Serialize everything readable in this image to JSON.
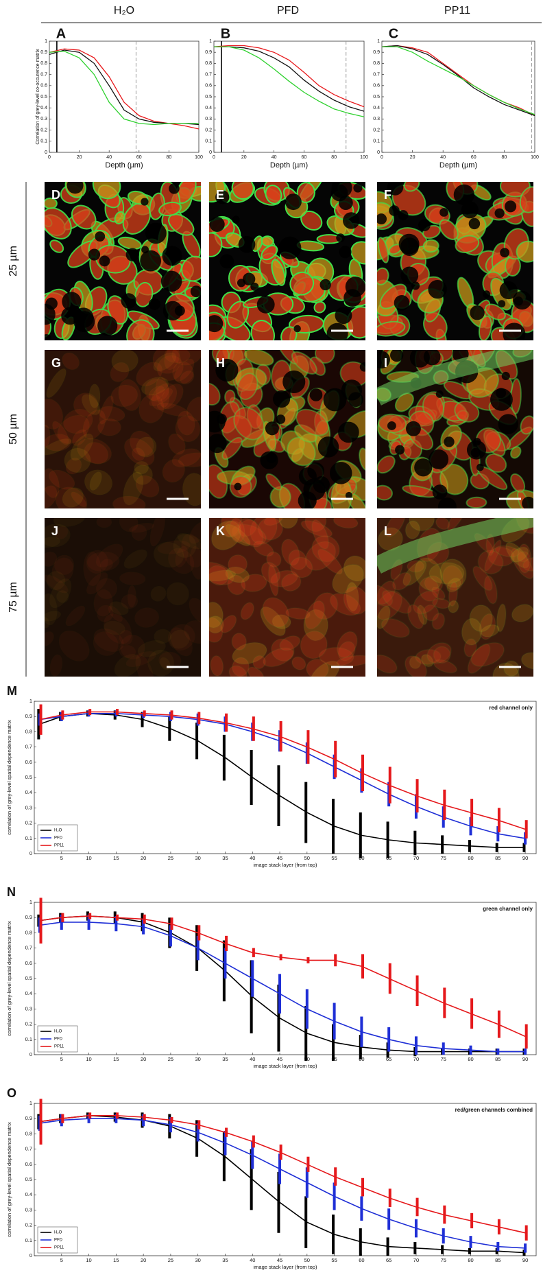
{
  "columns": [
    "H₂O",
    "PFD",
    "PP11"
  ],
  "micrographs": {
    "rows": [
      "25 µm",
      "50 µm",
      "75 µm"
    ],
    "panels": [
      "D",
      "E",
      "F",
      "G",
      "H",
      "I",
      "J",
      "K",
      "L"
    ]
  },
  "chart_data": [
    {
      "type": "line",
      "label": "A",
      "ylabel": "Correlation of grey-level co-occurence matrix",
      "xlabel": "Depth (µm)",
      "x": [
        0,
        10,
        20,
        30,
        40,
        50,
        60,
        70,
        80,
        90,
        100
      ],
      "xlim": [
        0,
        100
      ],
      "xticks": [
        0,
        20,
        40,
        60,
        80,
        100
      ],
      "ylim": [
        0,
        1
      ],
      "yticks": [
        0,
        0.1,
        0.2,
        0.3,
        0.4,
        0.5,
        0.6,
        0.7,
        0.8,
        0.9,
        1
      ],
      "series": [
        {
          "color": "#e8191c",
          "values": [
            0.9,
            0.93,
            0.92,
            0.85,
            0.68,
            0.45,
            0.33,
            0.28,
            0.26,
            0.24,
            0.21
          ]
        },
        {
          "color": "#111111",
          "values": [
            0.88,
            0.92,
            0.9,
            0.8,
            0.6,
            0.38,
            0.3,
            0.27,
            0.26,
            0.26,
            0.25
          ]
        },
        {
          "color": "#2fd12f",
          "values": [
            0.9,
            0.91,
            0.85,
            0.7,
            0.45,
            0.3,
            0.26,
            0.25,
            0.26,
            0.26,
            0.26
          ]
        }
      ],
      "vlines": [
        {
          "x": 5,
          "style": "solid"
        },
        {
          "x": 58,
          "style": "dashed"
        }
      ]
    },
    {
      "type": "line",
      "label": "B",
      "xlabel": "Depth (µm)",
      "x": [
        0,
        10,
        20,
        30,
        40,
        50,
        60,
        70,
        80,
        90,
        100
      ],
      "xlim": [
        0,
        100
      ],
      "xticks": [
        0,
        20,
        40,
        60,
        80,
        100
      ],
      "ylim": [
        0,
        1
      ],
      "yticks": [
        0,
        0.1,
        0.2,
        0.3,
        0.4,
        0.5,
        0.6,
        0.7,
        0.8,
        0.9,
        1
      ],
      "series": [
        {
          "color": "#e8191c",
          "values": [
            0.95,
            0.96,
            0.96,
            0.94,
            0.9,
            0.83,
            0.72,
            0.6,
            0.52,
            0.46,
            0.41
          ]
        },
        {
          "color": "#111111",
          "values": [
            0.95,
            0.95,
            0.94,
            0.91,
            0.85,
            0.77,
            0.65,
            0.55,
            0.47,
            0.41,
            0.37
          ]
        },
        {
          "color": "#2fd12f",
          "values": [
            0.95,
            0.95,
            0.92,
            0.85,
            0.75,
            0.64,
            0.54,
            0.46,
            0.39,
            0.35,
            0.32
          ]
        }
      ],
      "vlines": [
        {
          "x": 5,
          "style": "solid"
        },
        {
          "x": 88,
          "style": "dashed"
        }
      ]
    },
    {
      "type": "line",
      "label": "C",
      "xlabel": "Depth (µm)",
      "x": [
        0,
        10,
        20,
        30,
        40,
        50,
        60,
        70,
        80,
        90,
        100
      ],
      "xlim": [
        0,
        100
      ],
      "xticks": [
        0,
        20,
        40,
        60,
        80,
        100
      ],
      "ylim": [
        0,
        1
      ],
      "yticks": [
        0,
        0.1,
        0.2,
        0.3,
        0.4,
        0.5,
        0.6,
        0.7,
        0.8,
        0.9,
        1
      ],
      "series": [
        {
          "color": "#e8191c",
          "values": [
            0.95,
            0.96,
            0.94,
            0.9,
            0.8,
            0.7,
            0.6,
            0.52,
            0.45,
            0.4,
            0.33
          ]
        },
        {
          "color": "#111111",
          "values": [
            0.95,
            0.96,
            0.93,
            0.88,
            0.79,
            0.69,
            0.58,
            0.5,
            0.43,
            0.38,
            0.33
          ]
        },
        {
          "color": "#2fd12f",
          "values": [
            0.95,
            0.95,
            0.9,
            0.82,
            0.75,
            0.68,
            0.6,
            0.52,
            0.45,
            0.39,
            0.34
          ]
        }
      ],
      "vlines": [
        {
          "x": 98,
          "style": "dashed"
        }
      ]
    },
    {
      "type": "errorline",
      "label": "M",
      "annotation": "red channel only",
      "ylabel": "correlation of grey-level spatial dependence matrix",
      "xlabel": "image stack layer (from top)",
      "x": [
        1,
        5,
        10,
        15,
        20,
        25,
        30,
        35,
        40,
        45,
        50,
        55,
        60,
        65,
        70,
        75,
        80,
        85,
        90
      ],
      "xlim": [
        0,
        92
      ],
      "xticks": [
        5,
        10,
        15,
        20,
        25,
        30,
        35,
        40,
        45,
        50,
        55,
        60,
        65,
        70,
        75,
        80,
        85,
        90
      ],
      "ylim": [
        0,
        1
      ],
      "yticks": [
        0,
        0.1,
        0.2,
        0.3,
        0.4,
        0.5,
        0.6,
        0.7,
        0.8,
        0.9,
        1
      ],
      "legend": "lower left",
      "series": [
        {
          "name": "H₂O",
          "color": "#000000",
          "values": [
            0.85,
            0.9,
            0.92,
            0.91,
            0.88,
            0.82,
            0.74,
            0.63,
            0.5,
            0.38,
            0.27,
            0.18,
            0.12,
            0.09,
            0.07,
            0.06,
            0.05,
            0.04,
            0.04
          ],
          "errors": [
            0.1,
            0.03,
            0.02,
            0.03,
            0.05,
            0.08,
            0.12,
            0.15,
            0.18,
            0.2,
            0.2,
            0.18,
            0.15,
            0.12,
            0.08,
            0.06,
            0.04,
            0.03,
            0.03
          ]
        },
        {
          "name": "PFD",
          "color": "#1f2fd6",
          "values": [
            0.88,
            0.9,
            0.92,
            0.92,
            0.91,
            0.9,
            0.88,
            0.85,
            0.8,
            0.74,
            0.66,
            0.57,
            0.48,
            0.39,
            0.31,
            0.24,
            0.18,
            0.13,
            0.1
          ],
          "errors": [
            0.04,
            0.03,
            0.02,
            0.02,
            0.02,
            0.03,
            0.04,
            0.05,
            0.06,
            0.07,
            0.07,
            0.08,
            0.08,
            0.08,
            0.08,
            0.07,
            0.06,
            0.05,
            0.04
          ]
        },
        {
          "name": "PP11",
          "color": "#e5191c",
          "values": [
            0.88,
            0.91,
            0.93,
            0.93,
            0.92,
            0.91,
            0.89,
            0.86,
            0.82,
            0.77,
            0.7,
            0.62,
            0.53,
            0.45,
            0.38,
            0.32,
            0.27,
            0.22,
            0.16
          ],
          "errors": [
            0.1,
            0.03,
            0.02,
            0.02,
            0.02,
            0.03,
            0.04,
            0.06,
            0.08,
            0.1,
            0.11,
            0.12,
            0.12,
            0.12,
            0.11,
            0.1,
            0.09,
            0.08,
            0.06
          ]
        }
      ]
    },
    {
      "type": "errorline",
      "label": "N",
      "annotation": "green channel only",
      "ylabel": "correlation of grey-level spatial dependence matrix",
      "xlabel": "image stack layer (from top)",
      "x": [
        1,
        5,
        10,
        15,
        20,
        25,
        30,
        35,
        40,
        45,
        50,
        55,
        60,
        65,
        70,
        75,
        80,
        85,
        90
      ],
      "xlim": [
        0,
        92
      ],
      "xticks": [
        5,
        10,
        15,
        20,
        25,
        30,
        35,
        40,
        45,
        50,
        55,
        60,
        65,
        70,
        75,
        80,
        85,
        90
      ],
      "ylim": [
        0,
        1
      ],
      "yticks": [
        0,
        0.1,
        0.2,
        0.3,
        0.4,
        0.5,
        0.6,
        0.7,
        0.8,
        0.9,
        1
      ],
      "legend": "lower left",
      "series": [
        {
          "name": "H₂O",
          "color": "#000000",
          "values": [
            0.88,
            0.9,
            0.91,
            0.9,
            0.87,
            0.8,
            0.7,
            0.55,
            0.38,
            0.24,
            0.14,
            0.08,
            0.05,
            0.03,
            0.02,
            0.02,
            0.02,
            0.02,
            0.02
          ],
          "errors": [
            0.04,
            0.03,
            0.03,
            0.04,
            0.06,
            0.1,
            0.15,
            0.2,
            0.24,
            0.22,
            0.18,
            0.12,
            0.08,
            0.05,
            0.03,
            0.02,
            0.02,
            0.02,
            0.02
          ]
        },
        {
          "name": "PFD",
          "color": "#1f2fd6",
          "values": [
            0.85,
            0.87,
            0.87,
            0.86,
            0.84,
            0.78,
            0.7,
            0.6,
            0.5,
            0.4,
            0.3,
            0.22,
            0.15,
            0.1,
            0.06,
            0.04,
            0.03,
            0.02,
            0.02
          ],
          "errors": [
            0.05,
            0.05,
            0.05,
            0.05,
            0.05,
            0.07,
            0.08,
            0.1,
            0.12,
            0.13,
            0.13,
            0.12,
            0.1,
            0.08,
            0.06,
            0.04,
            0.03,
            0.02,
            0.02
          ]
        },
        {
          "name": "PP11",
          "color": "#e5191c",
          "values": [
            0.88,
            0.9,
            0.91,
            0.9,
            0.89,
            0.86,
            0.8,
            0.73,
            0.67,
            0.64,
            0.62,
            0.62,
            0.58,
            0.5,
            0.42,
            0.34,
            0.27,
            0.2,
            0.12
          ],
          "errors": [
            0.15,
            0.03,
            0.02,
            0.02,
            0.03,
            0.04,
            0.05,
            0.05,
            0.03,
            0.02,
            0.02,
            0.04,
            0.08,
            0.1,
            0.1,
            0.1,
            0.1,
            0.09,
            0.08
          ]
        }
      ]
    },
    {
      "type": "errorline",
      "label": "O",
      "annotation": "red/green channels combined",
      "ylabel": "correlation of grey-level spatial dependence matrix",
      "xlabel": "image stack layer (from top)",
      "x": [
        1,
        5,
        10,
        15,
        20,
        25,
        30,
        35,
        40,
        45,
        50,
        55,
        60,
        65,
        70,
        75,
        80,
        85,
        90
      ],
      "xlim": [
        0,
        92
      ],
      "xticks": [
        5,
        10,
        15,
        20,
        25,
        30,
        35,
        40,
        45,
        50,
        55,
        60,
        65,
        70,
        75,
        80,
        85,
        90
      ],
      "ylim": [
        0,
        1
      ],
      "yticks": [
        0,
        0.1,
        0.2,
        0.3,
        0.4,
        0.5,
        0.6,
        0.7,
        0.8,
        0.9,
        1
      ],
      "legend": "lower left",
      "series": [
        {
          "name": "H₂O",
          "color": "#000000",
          "values": [
            0.88,
            0.9,
            0.92,
            0.91,
            0.89,
            0.85,
            0.77,
            0.65,
            0.5,
            0.35,
            0.22,
            0.14,
            0.09,
            0.06,
            0.05,
            0.04,
            0.03,
            0.03,
            0.02
          ],
          "errors": [
            0.05,
            0.03,
            0.02,
            0.03,
            0.05,
            0.08,
            0.12,
            0.16,
            0.2,
            0.2,
            0.17,
            0.13,
            0.09,
            0.06,
            0.04,
            0.03,
            0.02,
            0.02,
            0.02
          ]
        },
        {
          "name": "PFD",
          "color": "#1f2fd6",
          "values": [
            0.87,
            0.89,
            0.9,
            0.9,
            0.89,
            0.86,
            0.81,
            0.74,
            0.66,
            0.57,
            0.48,
            0.39,
            0.31,
            0.24,
            0.18,
            0.13,
            0.09,
            0.06,
            0.05
          ],
          "errors": [
            0.05,
            0.04,
            0.03,
            0.03,
            0.04,
            0.05,
            0.06,
            0.08,
            0.09,
            0.1,
            0.1,
            0.09,
            0.08,
            0.07,
            0.06,
            0.05,
            0.04,
            0.03,
            0.03
          ]
        },
        {
          "name": "PP11",
          "color": "#e5191c",
          "values": [
            0.88,
            0.9,
            0.92,
            0.92,
            0.91,
            0.89,
            0.86,
            0.81,
            0.75,
            0.68,
            0.6,
            0.52,
            0.45,
            0.38,
            0.32,
            0.27,
            0.23,
            0.19,
            0.15
          ],
          "errors": [
            0.15,
            0.03,
            0.02,
            0.02,
            0.02,
            0.02,
            0.03,
            0.03,
            0.04,
            0.05,
            0.05,
            0.06,
            0.06,
            0.06,
            0.06,
            0.06,
            0.05,
            0.05,
            0.05
          ]
        }
      ]
    }
  ]
}
